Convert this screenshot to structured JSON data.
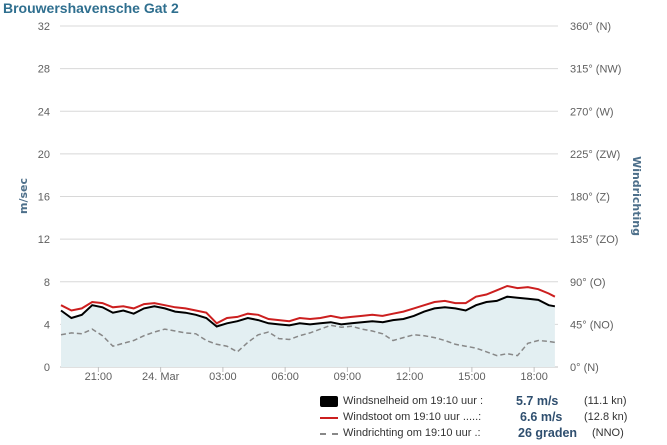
{
  "title": "Brouwershavensche Gat 2",
  "colors": {
    "speed": "#000000",
    "gust": "#cc1f1f",
    "direction": "#888888",
    "area_fill": "#e3eff2",
    "grid": "#d8d8d8",
    "title": "#2f6f8f",
    "axis_title": "#4d6f8a"
  },
  "chart_data": {
    "type": "line",
    "title": "Brouwershavensche Gat 2",
    "ylabel_left": "m/sec",
    "ylabel_right": "Windrichting",
    "ylim_left": [
      0,
      32
    ],
    "ylim_right": [
      0,
      360
    ],
    "left_ticks": [
      "0",
      "4",
      "8",
      "12",
      "16",
      "20",
      "24",
      "28",
      "32"
    ],
    "right_ticks": [
      "0° (N)",
      "45° (NO)",
      "90° (O)",
      "135° (ZO)",
      "180° (Z)",
      "225° (ZW)",
      "270° (W)",
      "315° (NW)",
      "360° (N)"
    ],
    "x_ticks": [
      "21:00",
      "24. Mar",
      "03:00",
      "06:00",
      "09:00",
      "12:00",
      "15:00",
      "18:00"
    ],
    "x_tick_hours": [
      21,
      24,
      27,
      30,
      33,
      36,
      39,
      42
    ],
    "x_range_hours": [
      19.15,
      43.15
    ],
    "grid": true,
    "series": [
      {
        "name": "Windsnelheid",
        "axis": "left",
        "style": "area",
        "x": [
          19.2,
          19.7,
          20.2,
          20.7,
          21.2,
          21.7,
          22.2,
          22.7,
          23.2,
          23.7,
          24.2,
          24.7,
          25.2,
          25.7,
          26.2,
          26.7,
          27.2,
          27.7,
          28.2,
          28.7,
          29.2,
          29.7,
          30.2,
          30.7,
          31.2,
          31.7,
          32.2,
          32.7,
          33.2,
          33.7,
          34.2,
          34.7,
          35.2,
          35.7,
          36.2,
          36.7,
          37.2,
          37.7,
          38.2,
          38.7,
          39.2,
          39.7,
          40.2,
          40.7,
          41.2,
          41.7,
          42.2,
          42.7,
          43.0
        ],
        "values": [
          5.3,
          4.6,
          4.9,
          5.8,
          5.6,
          5.1,
          5.3,
          5.0,
          5.5,
          5.7,
          5.5,
          5.2,
          5.1,
          4.9,
          4.6,
          3.8,
          4.1,
          4.3,
          4.6,
          4.4,
          4.1,
          4.0,
          3.9,
          4.1,
          4.0,
          4.1,
          4.2,
          4.0,
          4.1,
          4.2,
          4.3,
          4.2,
          4.4,
          4.5,
          4.8,
          5.2,
          5.5,
          5.6,
          5.5,
          5.3,
          5.8,
          6.1,
          6.2,
          6.6,
          6.5,
          6.4,
          6.3,
          5.8,
          5.7
        ]
      },
      {
        "name": "Windstoot",
        "axis": "left",
        "style": "line",
        "x": [
          19.2,
          19.7,
          20.2,
          20.7,
          21.2,
          21.7,
          22.2,
          22.7,
          23.2,
          23.7,
          24.2,
          24.7,
          25.2,
          25.7,
          26.2,
          26.7,
          27.2,
          27.7,
          28.2,
          28.7,
          29.2,
          29.7,
          30.2,
          30.7,
          31.2,
          31.7,
          32.2,
          32.7,
          33.2,
          33.7,
          34.2,
          34.7,
          35.2,
          35.7,
          36.2,
          36.7,
          37.2,
          37.7,
          38.2,
          38.7,
          39.2,
          39.7,
          40.2,
          40.7,
          41.2,
          41.7,
          42.2,
          42.7,
          43.0
        ],
        "values": [
          5.8,
          5.3,
          5.5,
          6.1,
          6.0,
          5.6,
          5.7,
          5.5,
          5.9,
          6.0,
          5.8,
          5.6,
          5.5,
          5.3,
          5.1,
          4.1,
          4.6,
          4.7,
          5.0,
          4.9,
          4.5,
          4.4,
          4.3,
          4.6,
          4.5,
          4.6,
          4.8,
          4.6,
          4.7,
          4.8,
          4.9,
          4.8,
          5.0,
          5.2,
          5.5,
          5.8,
          6.1,
          6.2,
          6.0,
          6.0,
          6.6,
          6.8,
          7.2,
          7.6,
          7.4,
          7.5,
          7.3,
          6.9,
          6.6
        ]
      },
      {
        "name": "Windrichting",
        "axis": "right",
        "style": "dashed",
        "x": [
          19.2,
          19.7,
          20.2,
          20.7,
          21.2,
          21.7,
          22.2,
          22.7,
          23.2,
          23.7,
          24.2,
          24.7,
          25.2,
          25.7,
          26.2,
          26.7,
          27.2,
          27.7,
          28.2,
          28.7,
          29.2,
          29.7,
          30.2,
          30.7,
          31.2,
          31.7,
          32.2,
          32.7,
          33.2,
          33.7,
          34.2,
          34.7,
          35.2,
          35.7,
          36.2,
          36.7,
          37.2,
          37.7,
          38.2,
          38.7,
          39.2,
          39.7,
          40.2,
          40.7,
          41.2,
          41.7,
          42.2,
          42.7,
          43.0
        ],
        "values": [
          34,
          36,
          35,
          40,
          33,
          22,
          25,
          28,
          33,
          37,
          40,
          38,
          36,
          35,
          28,
          24,
          22,
          16,
          26,
          34,
          37,
          30,
          29,
          33,
          36,
          40,
          44,
          42,
          43,
          40,
          38,
          35,
          28,
          31,
          34,
          33,
          31,
          28,
          24,
          22,
          20,
          16,
          12,
          14,
          12,
          25,
          28,
          27,
          26
        ]
      }
    ]
  },
  "legend": [
    {
      "label": "Windsnelheid om 19:10 uur :",
      "value": "5.7 m/s",
      "sub": "(11.1 kn)"
    },
    {
      "label": "Windstoot om 19:10 uur .....:",
      "value": "6.6 m/s",
      "sub": "(12.8 kn)"
    },
    {
      "label": "Windrichting om 19:10 uur .:",
      "value": "26 graden",
      "sub": "(NNO)"
    }
  ]
}
